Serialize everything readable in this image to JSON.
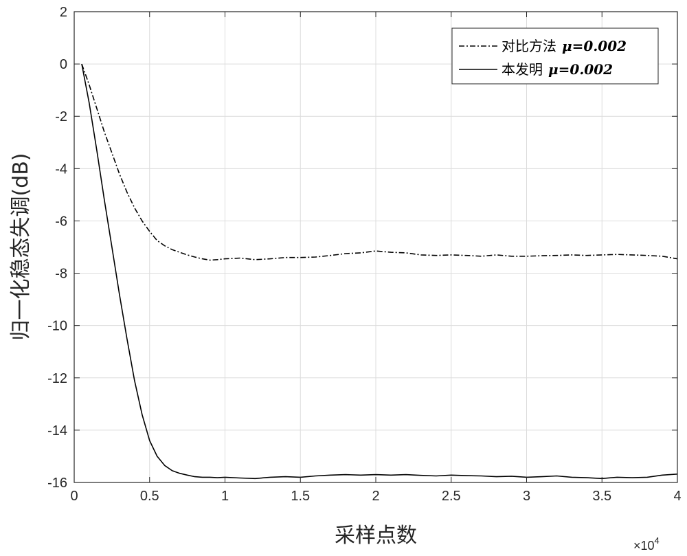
{
  "chart_data": {
    "type": "line",
    "xlabel": "采样点数",
    "ylabel": "归一化稳态失调(dB)",
    "x_exponent_label": "×10",
    "x_exponent_power": "4",
    "xlim": [
      0,
      40000
    ],
    "ylim": [
      -16,
      2
    ],
    "xticks": [
      0,
      5000,
      10000,
      15000,
      20000,
      25000,
      30000,
      35000,
      40000
    ],
    "xtick_labels": [
      "0",
      "0.5",
      "1",
      "1.5",
      "2",
      "2.5",
      "3",
      "3.5",
      "4"
    ],
    "yticks": [
      2,
      0,
      -2,
      -4,
      -6,
      -8,
      -10,
      -12,
      -14,
      -16
    ],
    "ytick_labels": [
      "2",
      "0",
      "-2",
      "-4",
      "-6",
      "-8",
      "-10",
      "-12",
      "-14",
      "-16"
    ],
    "grid": true,
    "legend_position": "top-right",
    "series": [
      {
        "name": "对比方法",
        "mu_label": "μ=0.002",
        "style": "dash-dot",
        "color": "#000000",
        "x": [
          500,
          1000,
          1500,
          2000,
          2500,
          3000,
          3500,
          4000,
          4500,
          5000,
          5500,
          6000,
          6500,
          7000,
          7500,
          8000,
          8500,
          9000,
          9500,
          10000,
          11000,
          12000,
          13000,
          14000,
          15000,
          16000,
          17000,
          18000,
          19000,
          20000,
          21000,
          22000,
          23000,
          24000,
          25000,
          26000,
          27000,
          28000,
          29000,
          30000,
          31000,
          32000,
          33000,
          34000,
          35000,
          36000,
          37000,
          38000,
          39000,
          40000
        ],
        "y": [
          0,
          -0.8,
          -1.7,
          -2.6,
          -3.4,
          -4.2,
          -4.9,
          -5.5,
          -6.0,
          -6.4,
          -6.75,
          -6.95,
          -7.1,
          -7.2,
          -7.3,
          -7.38,
          -7.45,
          -7.5,
          -7.48,
          -7.45,
          -7.42,
          -7.48,
          -7.45,
          -7.4,
          -7.4,
          -7.38,
          -7.32,
          -7.25,
          -7.22,
          -7.15,
          -7.2,
          -7.22,
          -7.3,
          -7.32,
          -7.3,
          -7.32,
          -7.35,
          -7.3,
          -7.35,
          -7.35,
          -7.33,
          -7.32,
          -7.3,
          -7.32,
          -7.3,
          -7.28,
          -7.3,
          -7.32,
          -7.35,
          -7.45
        ]
      },
      {
        "name": "本发明",
        "mu_label": "μ=0.002",
        "style": "solid",
        "color": "#000000",
        "x": [
          500,
          1000,
          1500,
          2000,
          2500,
          3000,
          3500,
          4000,
          4500,
          5000,
          5500,
          6000,
          6500,
          7000,
          7500,
          8000,
          8500,
          9000,
          9500,
          10000,
          11000,
          12000,
          13000,
          14000,
          15000,
          16000,
          17000,
          18000,
          19000,
          20000,
          21000,
          22000,
          23000,
          24000,
          25000,
          26000,
          27000,
          28000,
          29000,
          30000,
          31000,
          32000,
          33000,
          34000,
          35000,
          36000,
          37000,
          38000,
          39000,
          40000
        ],
        "y": [
          0,
          -1.5,
          -3.3,
          -5.2,
          -7.0,
          -8.8,
          -10.5,
          -12.1,
          -13.4,
          -14.4,
          -15.0,
          -15.35,
          -15.55,
          -15.65,
          -15.72,
          -15.78,
          -15.8,
          -15.8,
          -15.82,
          -15.8,
          -15.83,
          -15.85,
          -15.8,
          -15.78,
          -15.8,
          -15.75,
          -15.72,
          -15.7,
          -15.72,
          -15.7,
          -15.72,
          -15.7,
          -15.73,
          -15.75,
          -15.72,
          -15.74,
          -15.75,
          -15.78,
          -15.76,
          -15.8,
          -15.78,
          -15.75,
          -15.8,
          -15.82,
          -15.85,
          -15.8,
          -15.82,
          -15.8,
          -15.72,
          -15.68
        ]
      }
    ]
  }
}
